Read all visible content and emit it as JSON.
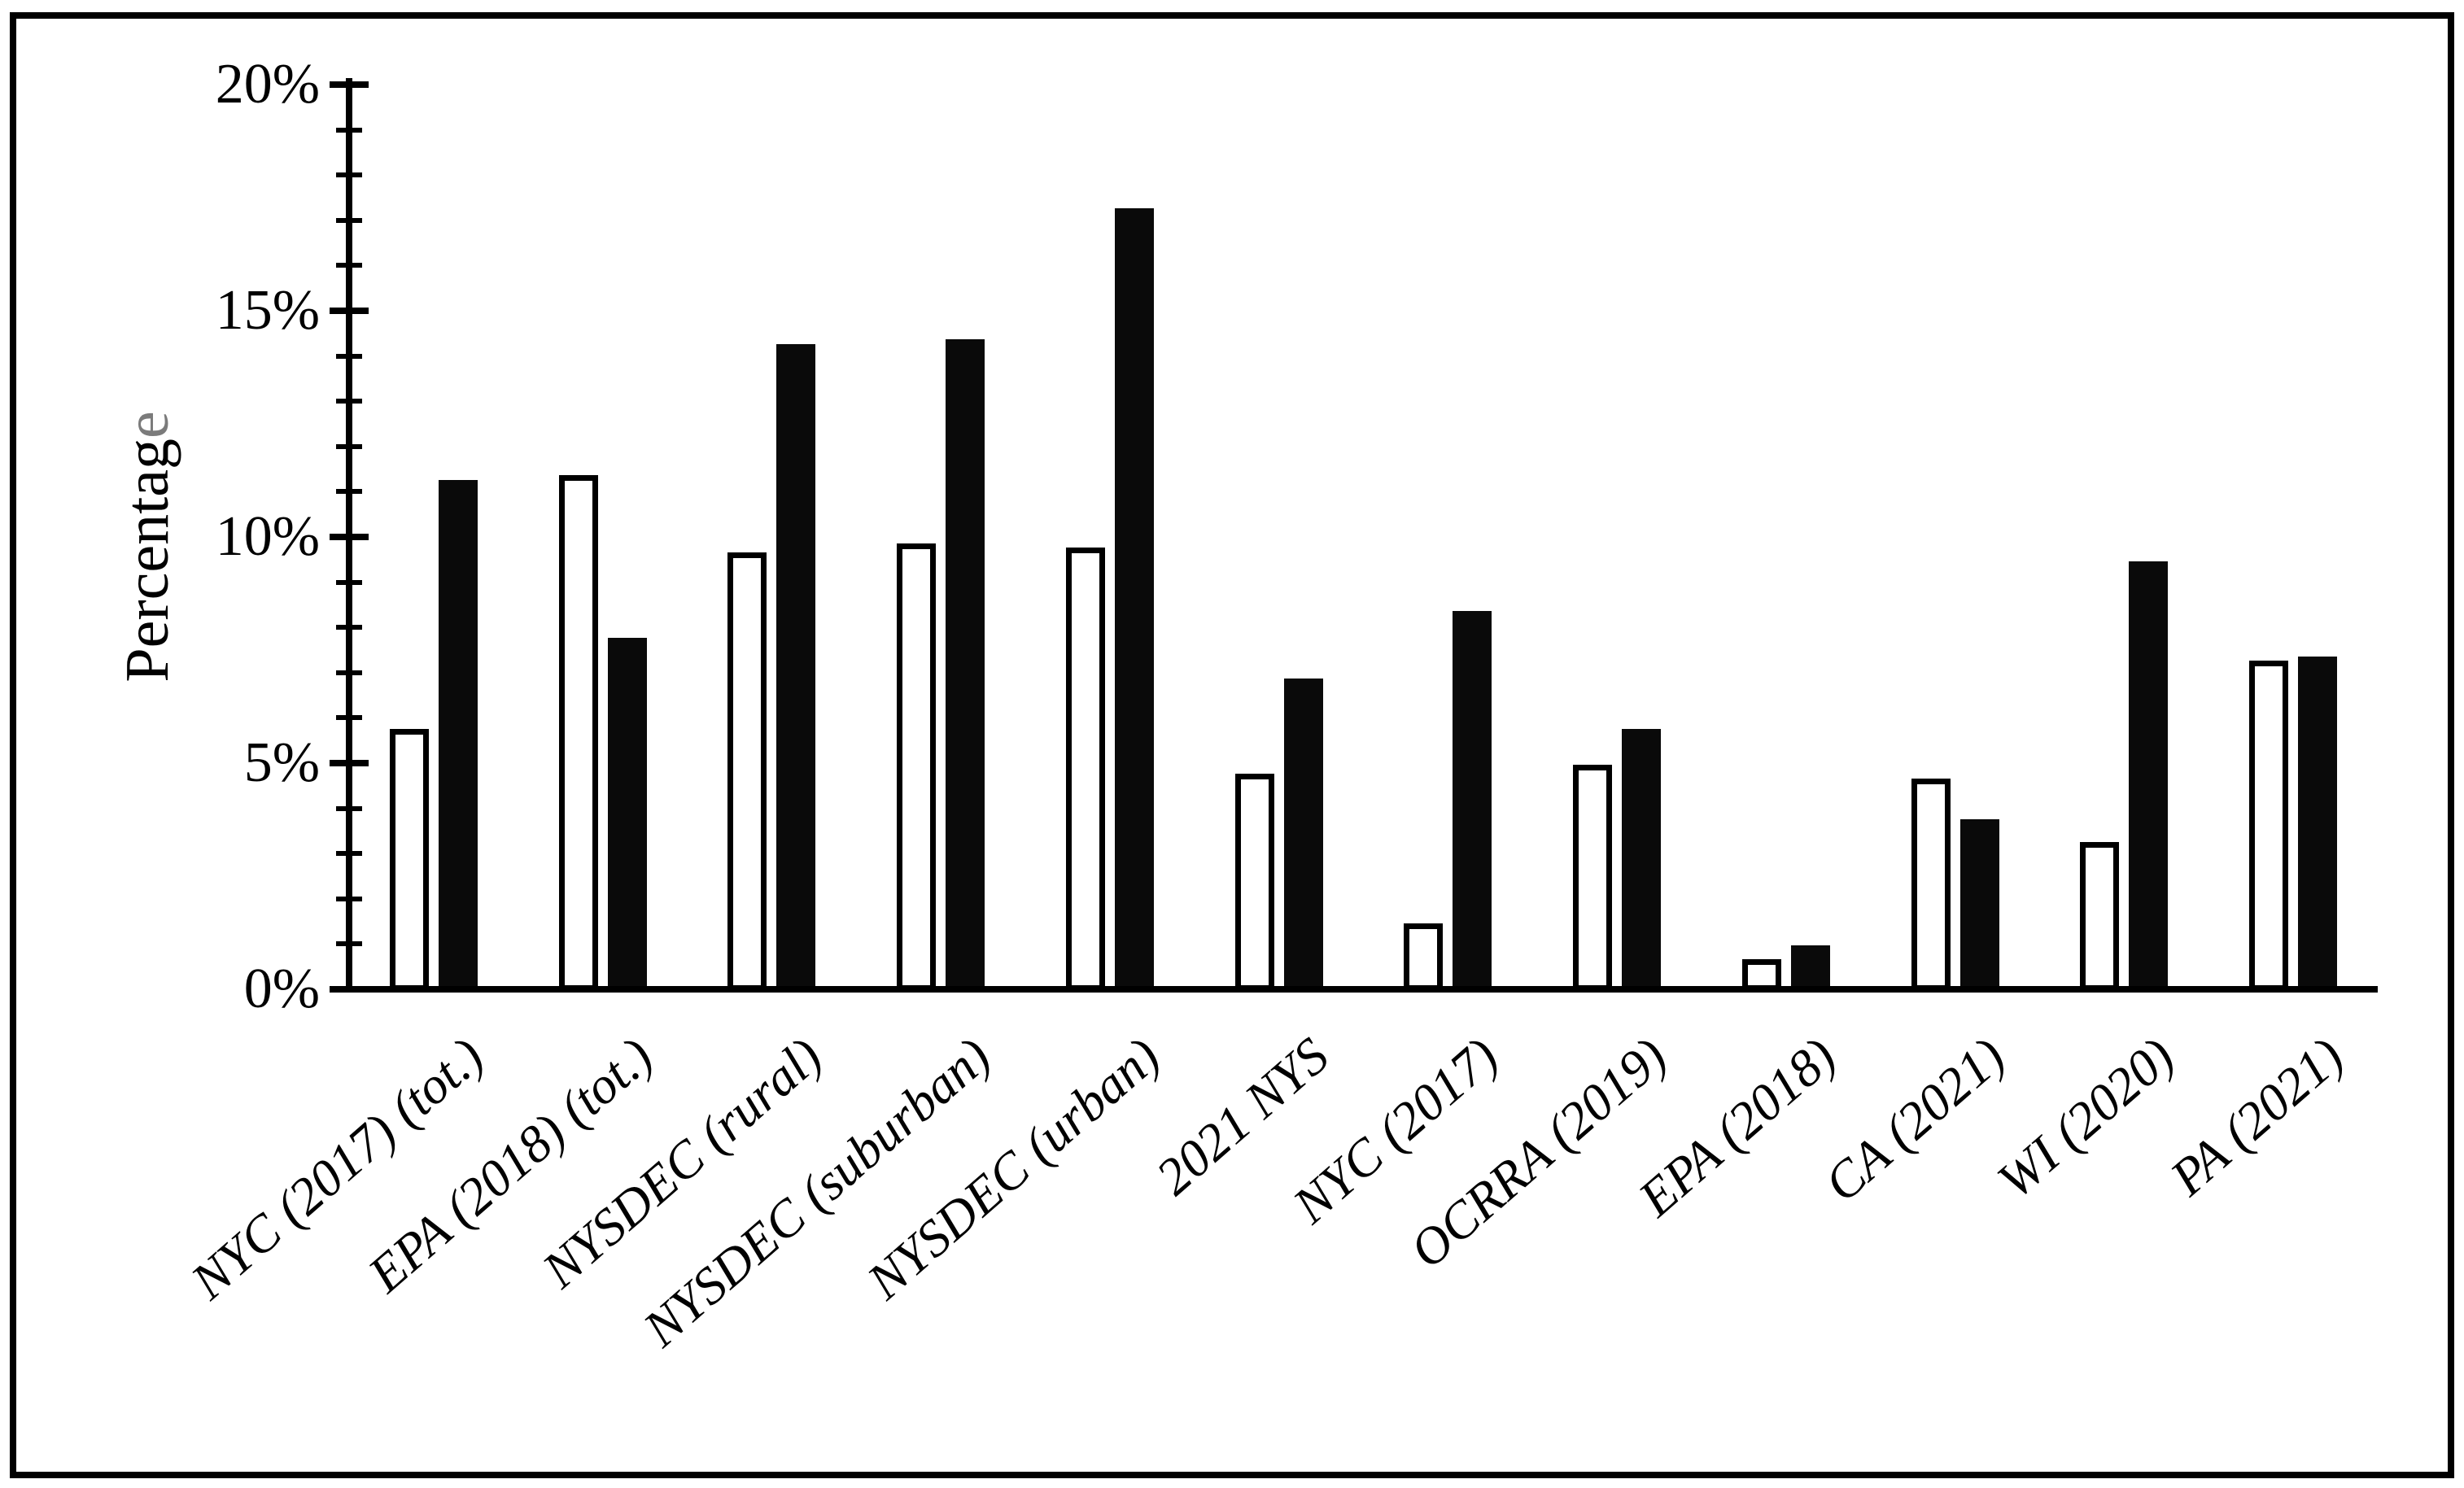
{
  "chart_data": {
    "type": "bar",
    "title": "",
    "xlabel": "",
    "ylabel": "Percentage",
    "ylabel_last_char_color": "#7b7b7b",
    "categories": [
      "NYC (2017) (tot.)",
      "EPA (2018) (tot.)",
      "NYSDEC (rural)",
      "NYSDEC (suburban)",
      "NYSDEC (urban)",
      "2021 NYS",
      "NYC (2017)",
      "OCRRA (2019)",
      "EPA (2018)",
      "CA (2021)",
      "WI (2020)",
      "PA (2021)"
    ],
    "series": [
      {
        "name": "white-outlined-bars",
        "fill": "#ffffff",
        "stroke": "#000000",
        "values": [
          5.8,
          11.4,
          9.7,
          9.9,
          9.8,
          4.8,
          1.5,
          5.0,
          0.7,
          4.7,
          3.3,
          7.3
        ]
      },
      {
        "name": "solid-black-bars",
        "fill": "#0a0a0a",
        "stroke": "#0a0a0a",
        "values": [
          11.3,
          7.8,
          14.3,
          14.4,
          17.3,
          6.9,
          8.4,
          5.8,
          1.0,
          3.8,
          9.5,
          7.4
        ]
      }
    ],
    "ylim": [
      0,
      20
    ],
    "ytick_values": [
      0,
      5,
      10,
      15,
      20
    ],
    "ytick_labels": [
      "0%",
      "5%",
      "10%",
      "15%",
      "20%"
    ],
    "minor_tick_step": 1,
    "grid": false,
    "legend_position": "none",
    "axis_color": "#000000",
    "background": "#ffffff",
    "category_label_rotation_deg": -41
  }
}
